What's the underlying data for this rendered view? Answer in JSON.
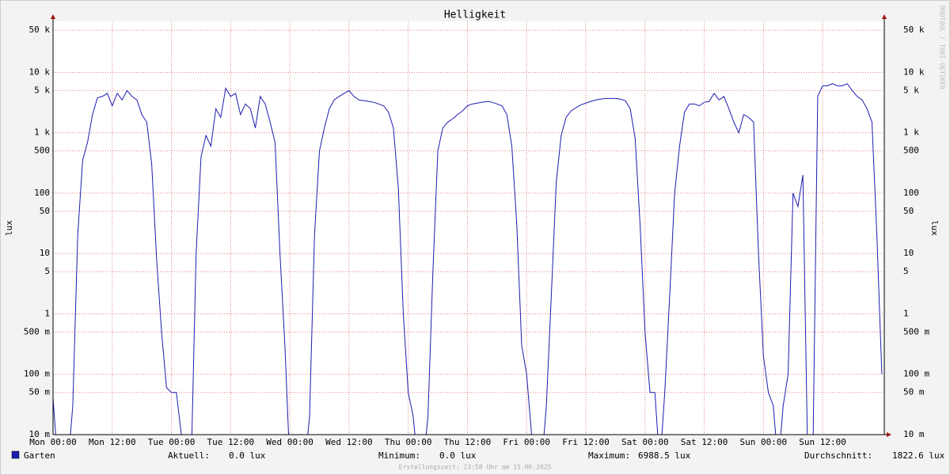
{
  "chart_data": {
    "type": "line",
    "title": "Helligkeit",
    "ylabel": "lux",
    "log_y": true,
    "grid": true,
    "watermark": "RRDTOOL / TOBI OETIKER",
    "footer": "Erstellungszeit: 23:58 Uhr am 15.06.2025",
    "xlim": [
      0,
      168.5
    ],
    "xticks": [
      {
        "value": 0,
        "label": "Mon 00:00"
      },
      {
        "value": 12,
        "label": "Mon 12:00"
      },
      {
        "value": 24,
        "label": "Tue 00:00"
      },
      {
        "value": 36,
        "label": "Tue 12:00"
      },
      {
        "value": 48,
        "label": "Wed 00:00"
      },
      {
        "value": 60,
        "label": "Wed 12:00"
      },
      {
        "value": 72,
        "label": "Thu 00:00"
      },
      {
        "value": 84,
        "label": "Thu 12:00"
      },
      {
        "value": 96,
        "label": "Fri 00:00"
      },
      {
        "value": 108,
        "label": "Fri 12:00"
      },
      {
        "value": 120,
        "label": "Sat 00:00"
      },
      {
        "value": 132,
        "label": "Sat 12:00"
      },
      {
        "value": 144,
        "label": "Sun 00:00"
      },
      {
        "value": 156,
        "label": "Sun 12:00"
      }
    ],
    "ylim": [
      0.01,
      70000
    ],
    "yticks": [
      {
        "value": 0.01,
        "label": "10 m"
      },
      {
        "value": 0.05,
        "label": "50 m"
      },
      {
        "value": 0.1,
        "label": "100 m"
      },
      {
        "value": 0.5,
        "label": "500 m"
      },
      1,
      5,
      10,
      50,
      100,
      500,
      {
        "value": 1000,
        "label": "1 k"
      },
      {
        "value": 5000,
        "label": "5 k"
      },
      {
        "value": 10000,
        "label": "10 k"
      },
      {
        "value": 50000,
        "label": "50 k"
      }
    ],
    "x": [
      0,
      1,
      2,
      3,
      4,
      5,
      6,
      7,
      8,
      9,
      10,
      11,
      12,
      13,
      14,
      15,
      16,
      17,
      18,
      19,
      20,
      21,
      22,
      23,
      24,
      25,
      26,
      27,
      28,
      29,
      30,
      31,
      32,
      33,
      34,
      35,
      36,
      37,
      38,
      39,
      40,
      41,
      42,
      43,
      44,
      45,
      46,
      47,
      48,
      49,
      50,
      51,
      52,
      53,
      54,
      55,
      56,
      57,
      58,
      59,
      60,
      61,
      62,
      63,
      64,
      65,
      66,
      67,
      68,
      69,
      70,
      71,
      72,
      73,
      74,
      75,
      76,
      77,
      78,
      79,
      80,
      81,
      82,
      83,
      84,
      85,
      86,
      87,
      88,
      89,
      90,
      91,
      92,
      93,
      94,
      95,
      96,
      97,
      98,
      99,
      100,
      101,
      102,
      103,
      104,
      105,
      106,
      107,
      108,
      109,
      110,
      111,
      112,
      113,
      114,
      115,
      116,
      117,
      118,
      119,
      120,
      121,
      122,
      123,
      124,
      125,
      126,
      127,
      128,
      129,
      130,
      131,
      132,
      133,
      134,
      135,
      136,
      137,
      138,
      139,
      140,
      141,
      142,
      143,
      144,
      145,
      146,
      147,
      148,
      149,
      150,
      151,
      152,
      153,
      154,
      155,
      156,
      157,
      158,
      159,
      160,
      161,
      162,
      163,
      164,
      165,
      166,
      167,
      168
    ],
    "series": [
      {
        "name": "Garten",
        "color": "#1c1cb0",
        "values": [
          0.04,
          0,
          0,
          0,
          0.03,
          20,
          350,
          700,
          2000,
          3800,
          4000,
          4500,
          2800,
          4500,
          3500,
          5000,
          4000,
          3500,
          2000,
          1500,
          300,
          8,
          0.5,
          0.06,
          0.05,
          0.05,
          0.01,
          0,
          0,
          10,
          400,
          900,
          600,
          2500,
          1800,
          5500,
          4000,
          4500,
          2000,
          3000,
          2500,
          1200,
          4000,
          3000,
          1500,
          700,
          10,
          0.3,
          0,
          0,
          0,
          0,
          0.02,
          20,
          500,
          1200,
          2500,
          3500,
          4000,
          4500,
          5000,
          4000,
          3500,
          3400,
          3300,
          3200,
          3000,
          2800,
          2200,
          1200,
          120,
          1,
          0.05,
          0.02,
          0,
          0,
          0.02,
          5,
          500,
          1200,
          1500,
          1700,
          2000,
          2300,
          2800,
          3000,
          3100,
          3200,
          3300,
          3200,
          3000,
          2800,
          2000,
          600,
          30,
          0.3,
          0.1,
          0.01,
          0,
          0,
          0.03,
          2,
          150,
          900,
          1800,
          2300,
          2600,
          2900,
          3100,
          3300,
          3500,
          3600,
          3700,
          3700,
          3700,
          3600,
          3400,
          2500,
          800,
          30,
          0.5,
          0.05,
          0.05,
          0,
          0.05,
          2,
          100,
          600,
          2200,
          3000,
          3000,
          2800,
          3200,
          3300,
          4500,
          3500,
          4000,
          2500,
          1500,
          1000,
          2000,
          1800,
          1500,
          10,
          0.2,
          0.05,
          0.03,
          0,
          0.03,
          0.1,
          100,
          60,
          200,
          0,
          0,
          4000,
          6000,
          6000,
          6500,
          6000,
          6000,
          6500,
          5000,
          4000,
          3500,
          2500,
          1500,
          20,
          0.1
        ]
      }
    ],
    "stats": [
      {
        "label": "Aktuell:",
        "value": "0.0 lux"
      },
      {
        "label": "Minimum:",
        "value": "0.0 lux"
      },
      {
        "label": "Maximum:",
        "value": "6988.5 lux"
      },
      {
        "label": "Durchschnitt:",
        "value": "1822.6 lux"
      }
    ]
  }
}
